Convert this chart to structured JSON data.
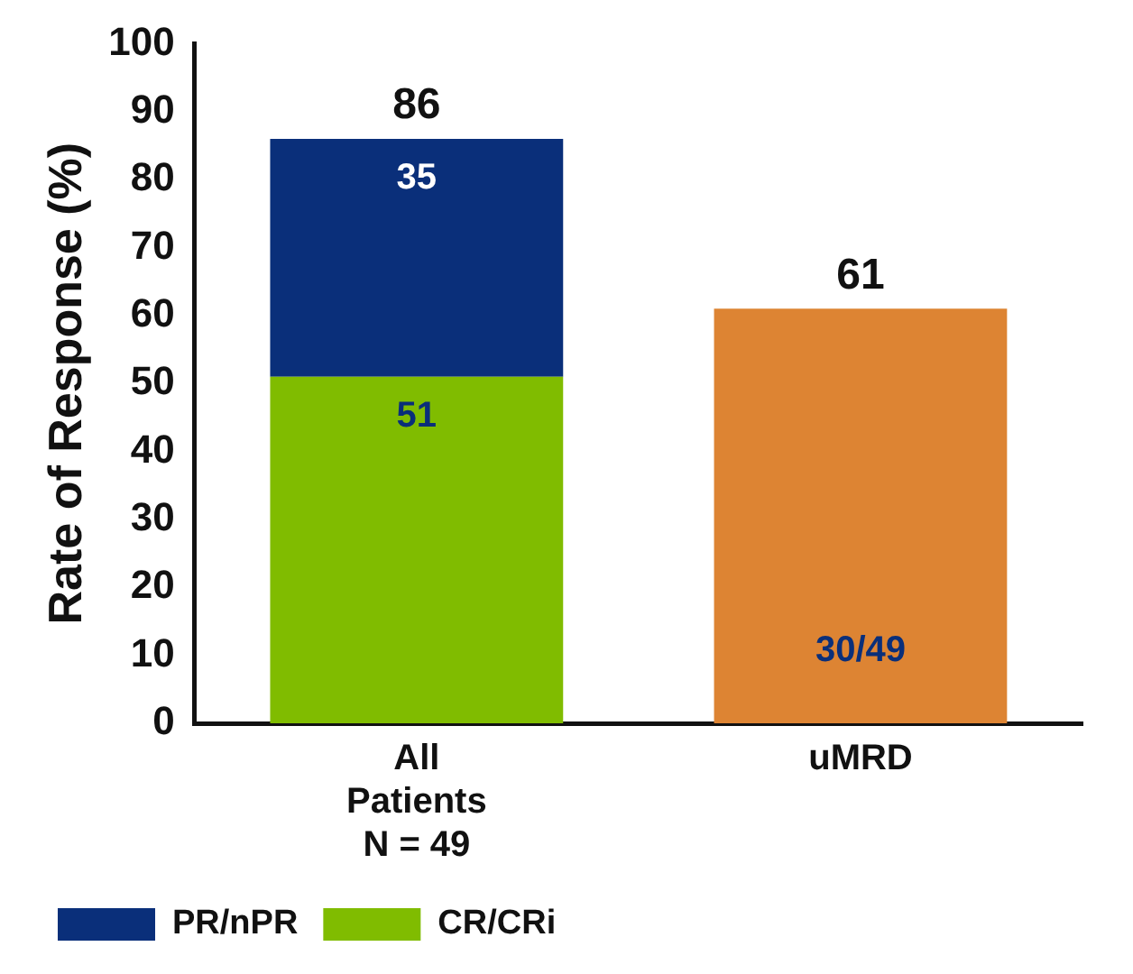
{
  "chart_data": {
    "type": "bar",
    "stacked": true,
    "ylabel": "Rate of Response (%)",
    "categories": [
      "All\nPatients\nN = 49",
      "uMRD"
    ],
    "series": [
      {
        "name": "CR/CRi",
        "color": "#80bc00",
        "values": [
          51,
          null
        ],
        "value_labels": [
          "51",
          null
        ]
      },
      {
        "name": "PR/nPR",
        "color": "#0a2f7a",
        "values": [
          35,
          null
        ],
        "value_labels": [
          "35",
          null
        ]
      },
      {
        "color": "#dd8433",
        "values": [
          null,
          61
        ]
      }
    ],
    "totals": [
      "86",
      "61"
    ],
    "annotations": [
      "30/49"
    ],
    "ylim": [
      0,
      100
    ],
    "yticks": [
      0,
      10,
      20,
      30,
      40,
      50,
      60,
      70,
      80,
      90,
      100
    ],
    "grid": false,
    "legend": "bottom left"
  }
}
